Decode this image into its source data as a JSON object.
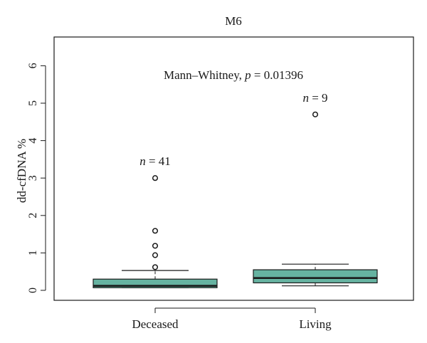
{
  "chart_data": {
    "type": "box",
    "title": "M6",
    "xlabel": "",
    "ylabel": "dd-cfDNA %",
    "ylim": [
      -0.25,
      6.6
    ],
    "yticks": [
      0,
      1,
      2,
      3,
      4,
      5,
      6
    ],
    "categories": [
      "Deceased",
      "Living"
    ],
    "annotation": {
      "prefix": "Mann–Whitney, ",
      "italic": "p",
      "suffix": " = 0.01396"
    },
    "boxes": [
      {
        "category": "Deceased",
        "n_label": {
          "italic": "n",
          "suffix": " = 41"
        },
        "whisker_low": 0.07,
        "q1": 0.07,
        "median": 0.12,
        "q3": 0.3,
        "whisker_high": 0.53,
        "outliers": [
          0.62,
          0.94,
          1.19,
          1.59,
          3.0
        ]
      },
      {
        "category": "Living",
        "n_label": {
          "italic": "n",
          "suffix": " = 9"
        },
        "whisker_low": 0.12,
        "q1": 0.2,
        "median": 0.33,
        "q3": 0.55,
        "whisker_high": 0.7,
        "outliers": [
          4.7
        ]
      }
    ],
    "box_color": "#66b3a1",
    "line_color": "#1a1a1a"
  }
}
